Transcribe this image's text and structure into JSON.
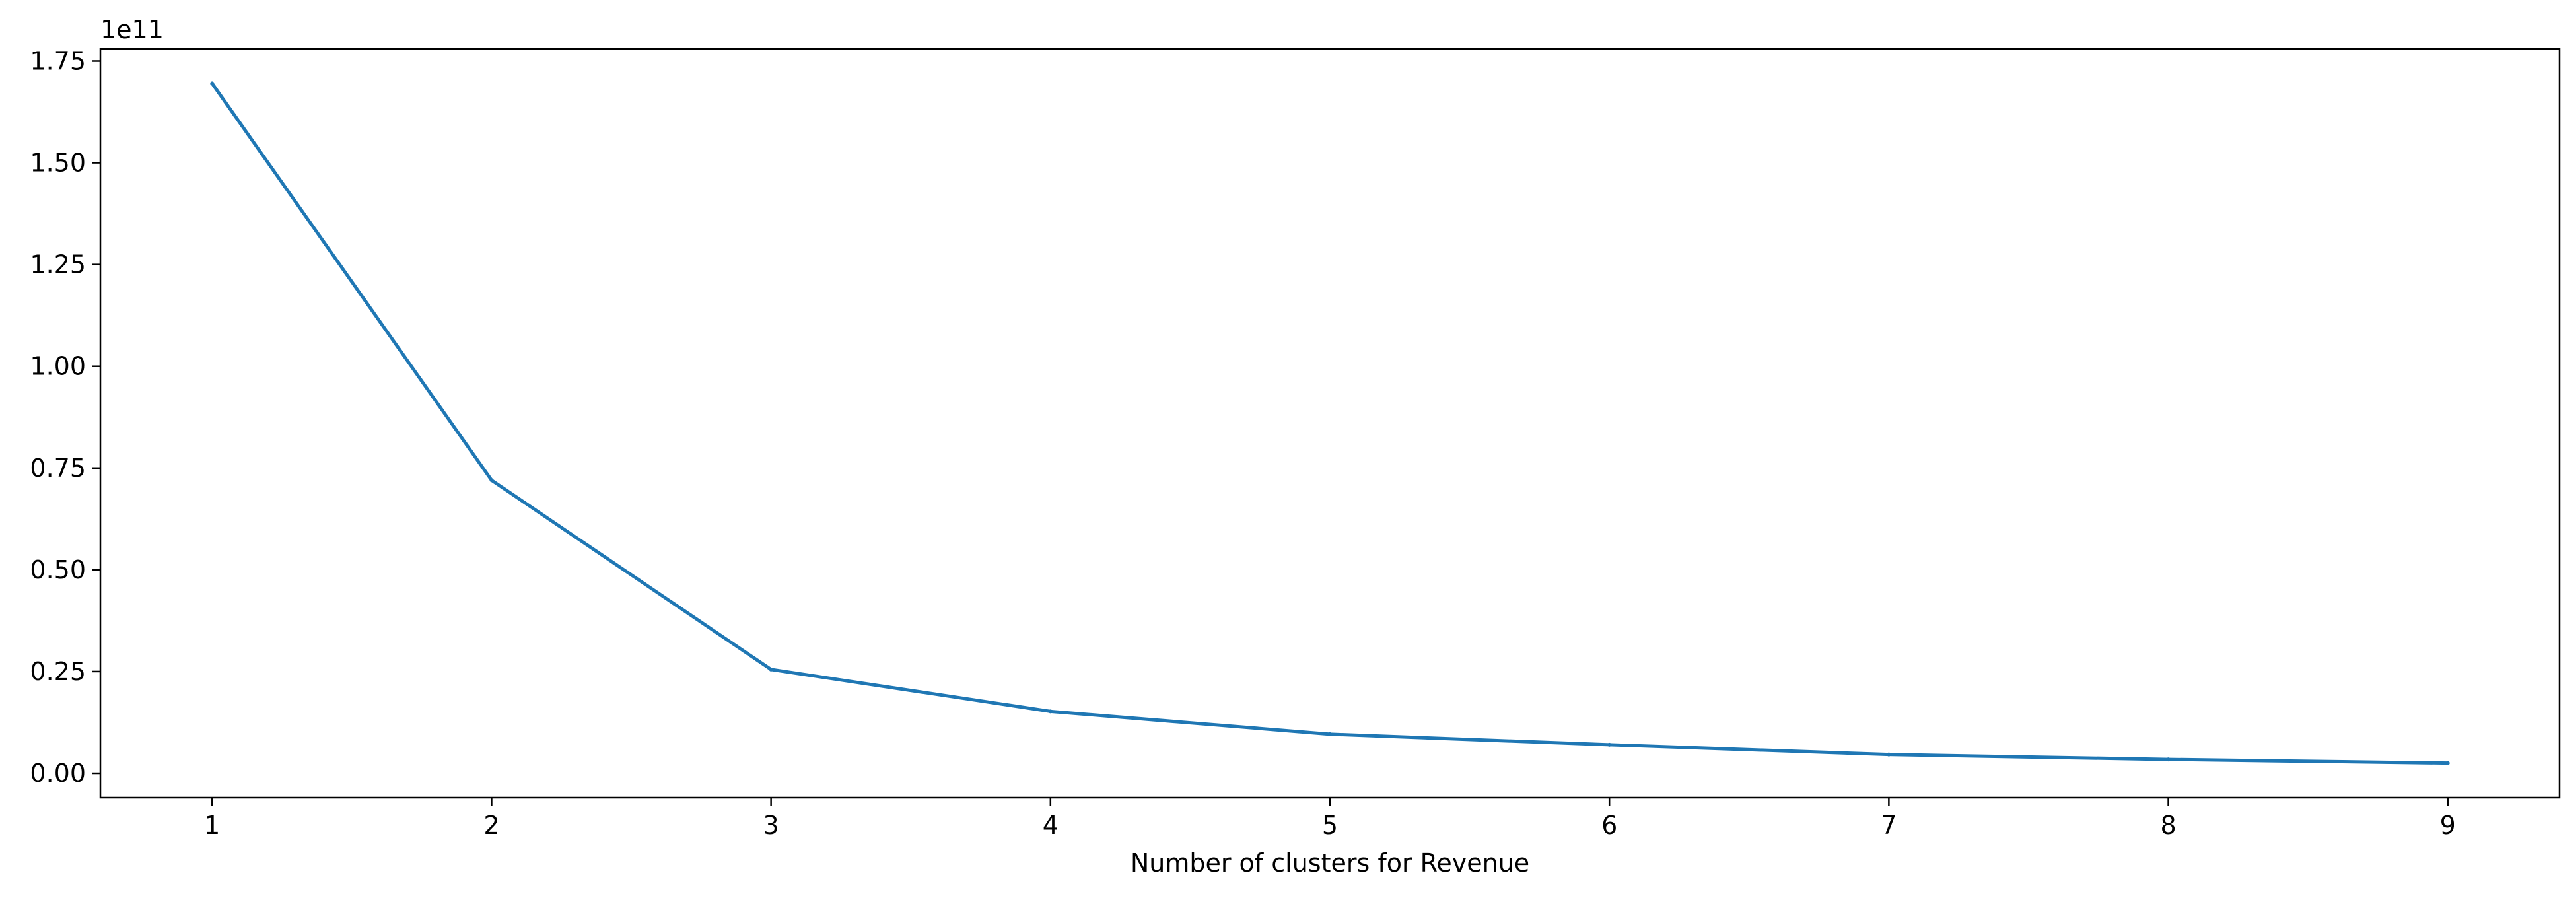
{
  "chart_data": {
    "type": "line",
    "title": "",
    "xlabel": "Number of clusters for Revenue",
    "ylabel": "",
    "y_offset_text": "1e11",
    "x": [
      1,
      2,
      3,
      4,
      5,
      6,
      7,
      8,
      9
    ],
    "series": [
      {
        "values": [
          169500000000,
          72000000000,
          25500000000,
          15200000000,
          9600000000,
          7000000000,
          4600000000,
          3400000000,
          2500000000
        ]
      }
    ],
    "xticks": [
      1,
      2,
      3,
      4,
      5,
      6,
      7,
      8,
      9
    ],
    "xtick_labels": [
      "1",
      "2",
      "3",
      "4",
      "5",
      "6",
      "7",
      "8",
      "9"
    ],
    "yticks": [
      0,
      0.25,
      0.5,
      0.75,
      1.0,
      1.25,
      1.5,
      1.75
    ],
    "ytick_labels": [
      "0.00",
      "0.25",
      "0.50",
      "0.75",
      "1.00",
      "1.25",
      "1.50",
      "1.75"
    ],
    "xlim": [
      0.6,
      9.4
    ],
    "ylim": [
      -0.06,
      1.78
    ],
    "y_scale_factor": 100000000000,
    "grid": false,
    "legend": "none",
    "line_color": "#1f77b4"
  }
}
